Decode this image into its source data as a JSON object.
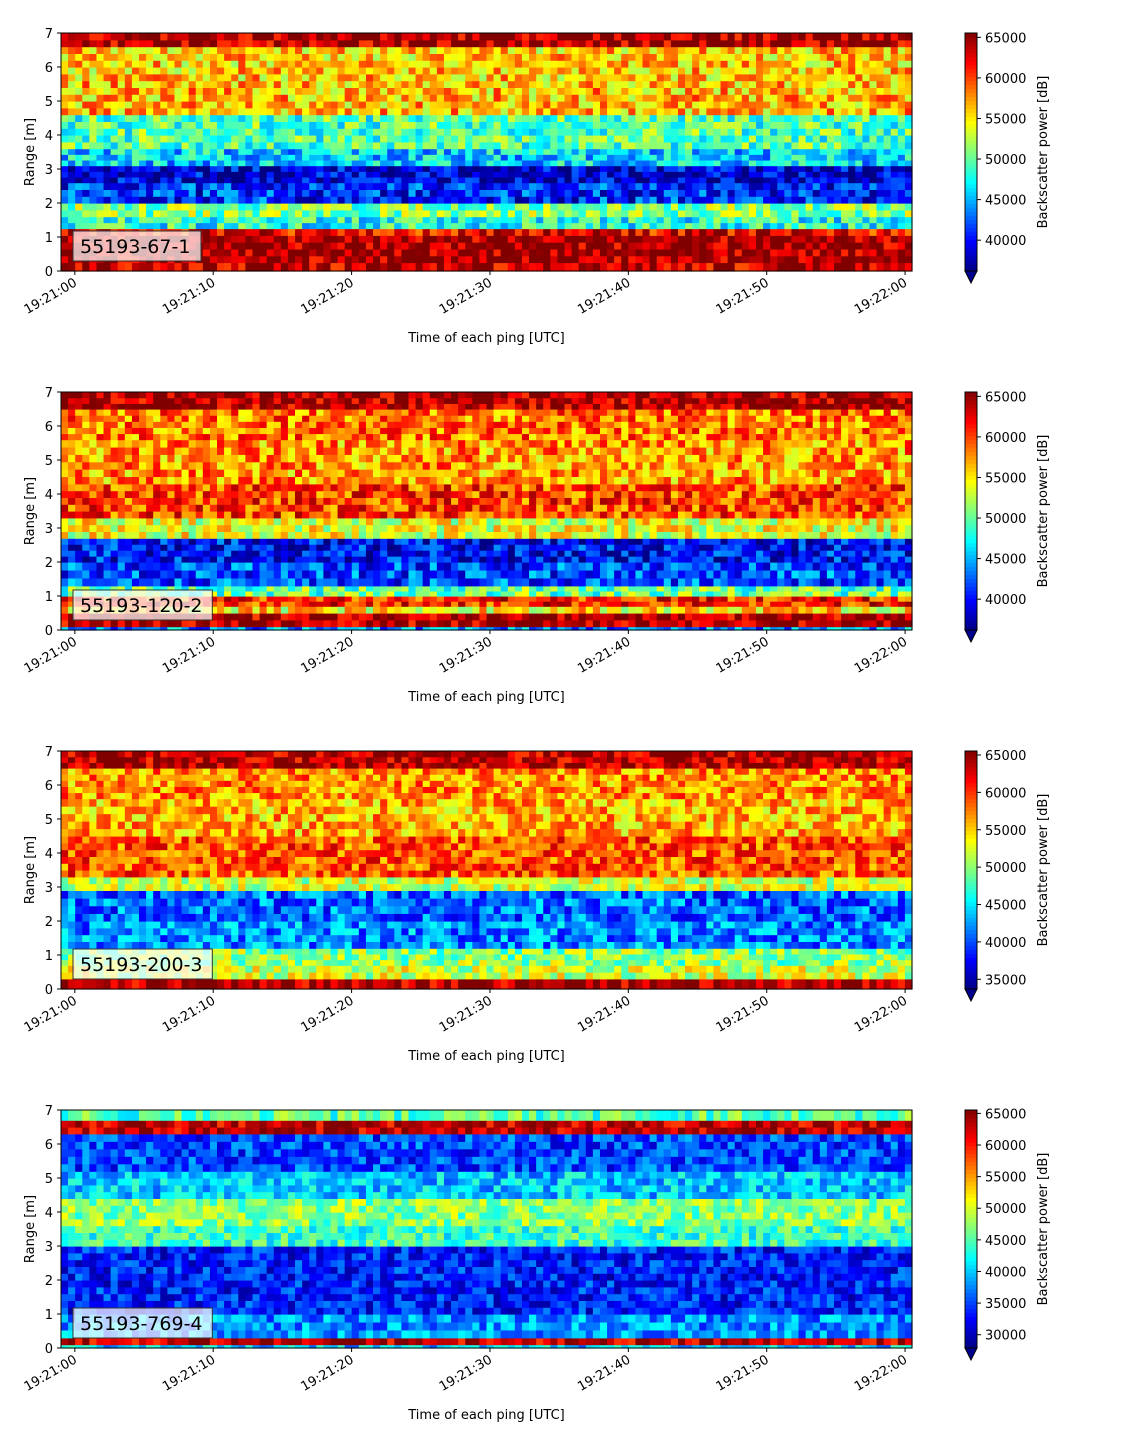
{
  "chart_data": [
    {
      "type": "heatmap",
      "panel_label": "55193-67-1",
      "xlabel": "Time of each ping [UTC]",
      "ylabel": "Range [m]",
      "x_ticks": [
        "19:21:00",
        "19:21:10",
        "19:21:20",
        "19:21:30",
        "19:21:40",
        "19:21:50",
        "19:22:00"
      ],
      "y_ticks": [
        0,
        1,
        2,
        3,
        4,
        5,
        6,
        7
      ],
      "ylim": [
        0,
        7
      ],
      "colorbar": {
        "label": "Backscatter power [dB]",
        "ticks": [
          40000,
          45000,
          50000,
          55000,
          60000,
          65000
        ],
        "range": [
          36200,
          65535
        ],
        "colormap": "jet",
        "extend": "min"
      },
      "range_profile": [
        {
          "range": [
            0,
            0.25
          ],
          "value": 64000
        },
        {
          "range": [
            0.25,
            1.05
          ],
          "value": 65000
        },
        {
          "range": [
            1.05,
            1.25
          ],
          "value": 62000
        },
        {
          "range": [
            1.25,
            1.6
          ],
          "value": 48000
        },
        {
          "range": [
            1.6,
            2.0
          ],
          "value": 51000
        },
        {
          "range": [
            2.0,
            2.6
          ],
          "value": 41000
        },
        {
          "range": [
            2.6,
            3.1
          ],
          "value": 38500
        },
        {
          "range": [
            3.1,
            3.6
          ],
          "value": 46000
        },
        {
          "range": [
            3.6,
            4.6
          ],
          "value": 49500
        },
        {
          "range": [
            4.6,
            5.6
          ],
          "value": 56500
        },
        {
          "range": [
            5.6,
            6.6
          ],
          "value": 56000
        },
        {
          "range": [
            6.6,
            7.0
          ],
          "value": 64500
        }
      ]
    },
    {
      "type": "heatmap",
      "panel_label": "55193-120-2",
      "xlabel": "Time of each ping [UTC]",
      "ylabel": "Range [m]",
      "x_ticks": [
        "19:21:00",
        "19:21:10",
        "19:21:20",
        "19:21:30",
        "19:21:40",
        "19:21:50",
        "19:22:00"
      ],
      "y_ticks": [
        0,
        1,
        2,
        3,
        4,
        5,
        6,
        7
      ],
      "ylim": [
        0,
        7
      ],
      "colorbar": {
        "label": "Backscatter power [dB]",
        "ticks": [
          40000,
          45000,
          50000,
          55000,
          60000,
          65000
        ],
        "range": [
          36200,
          65535
        ],
        "colormap": "jet",
        "extend": "min"
      },
      "range_profile": [
        {
          "range": [
            0,
            0.1
          ],
          "value": 44000
        },
        {
          "range": [
            0.1,
            0.5
          ],
          "value": 64500
        },
        {
          "range": [
            0.5,
            0.7
          ],
          "value": 55000
        },
        {
          "range": [
            0.7,
            1.0
          ],
          "value": 61000
        },
        {
          "range": [
            1.0,
            1.3
          ],
          "value": 50000
        },
        {
          "range": [
            1.3,
            2.0
          ],
          "value": 42000
        },
        {
          "range": [
            2.0,
            2.7
          ],
          "value": 40000
        },
        {
          "range": [
            2.7,
            3.3
          ],
          "value": 54000
        },
        {
          "range": [
            3.3,
            4.3
          ],
          "value": 60000
        },
        {
          "range": [
            4.3,
            5.6
          ],
          "value": 57500
        },
        {
          "range": [
            5.6,
            6.5
          ],
          "value": 58500
        },
        {
          "range": [
            6.5,
            7.0
          ],
          "value": 64500
        }
      ]
    },
    {
      "type": "heatmap",
      "panel_label": "55193-200-3",
      "xlabel": "Time of each ping [UTC]",
      "ylabel": "Range [m]",
      "x_ticks": [
        "19:21:00",
        "19:21:10",
        "19:21:20",
        "19:21:30",
        "19:21:40",
        "19:21:50",
        "19:22:00"
      ],
      "y_ticks": [
        0,
        1,
        2,
        3,
        4,
        5,
        6,
        7
      ],
      "ylim": [
        0,
        7
      ],
      "colorbar": {
        "label": "Backscatter power [dB]",
        "ticks": [
          35000,
          40000,
          45000,
          50000,
          55000,
          60000,
          65000
        ],
        "range": [
          33700,
          65535
        ],
        "colormap": "jet",
        "extend": "min"
      },
      "range_profile": [
        {
          "range": [
            0,
            0.3
          ],
          "value": 64500
        },
        {
          "range": [
            0.3,
            0.7
          ],
          "value": 52000
        },
        {
          "range": [
            0.7,
            1.2
          ],
          "value": 50000
        },
        {
          "range": [
            1.2,
            2.0
          ],
          "value": 42000
        },
        {
          "range": [
            2.0,
            2.9
          ],
          "value": 41000
        },
        {
          "range": [
            2.9,
            3.3
          ],
          "value": 52000
        },
        {
          "range": [
            3.3,
            4.5
          ],
          "value": 59000
        },
        {
          "range": [
            4.5,
            5.6
          ],
          "value": 56000
        },
        {
          "range": [
            5.6,
            6.5
          ],
          "value": 57000
        },
        {
          "range": [
            6.5,
            7.0
          ],
          "value": 64000
        }
      ]
    },
    {
      "type": "heatmap",
      "panel_label": "55193-769-4",
      "xlabel": "Time of each ping [UTC]",
      "ylabel": "Range [m]",
      "x_ticks": [
        "19:21:00",
        "19:21:10",
        "19:21:20",
        "19:21:30",
        "19:21:40",
        "19:21:50",
        "19:22:00"
      ],
      "y_ticks": [
        0,
        1,
        2,
        3,
        4,
        5,
        6,
        7
      ],
      "ylim": [
        0,
        7
      ],
      "colorbar": {
        "label": "Backscatter power [dB]",
        "ticks": [
          30000,
          35000,
          40000,
          45000,
          50000,
          55000,
          60000,
          65000
        ],
        "range": [
          27900,
          65535
        ],
        "colormap": "jet",
        "extend": "min"
      },
      "range_profile": [
        {
          "range": [
            0,
            0.1
          ],
          "value": 40000
        },
        {
          "range": [
            0.1,
            0.3
          ],
          "value": 63000
        },
        {
          "range": [
            0.3,
            1.0
          ],
          "value": 38000
        },
        {
          "range": [
            1.0,
            3.0
          ],
          "value": 33500
        },
        {
          "range": [
            3.0,
            3.6
          ],
          "value": 44000
        },
        {
          "range": [
            3.6,
            4.4
          ],
          "value": 47000
        },
        {
          "range": [
            4.4,
            5.2
          ],
          "value": 40000
        },
        {
          "range": [
            5.2,
            6.3
          ],
          "value": 35000
        },
        {
          "range": [
            6.3,
            6.7
          ],
          "value": 63000
        },
        {
          "range": [
            6.7,
            7.0
          ],
          "value": 45000
        }
      ]
    }
  ]
}
